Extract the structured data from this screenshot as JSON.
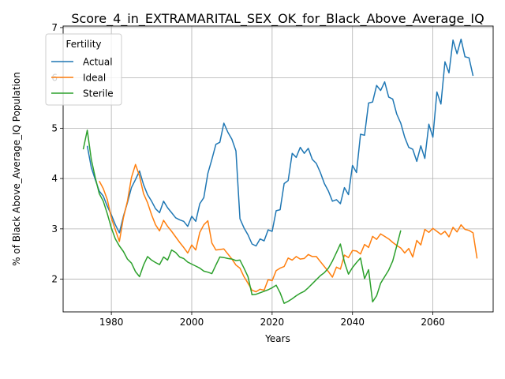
{
  "chart_data": {
    "type": "line",
    "title": "Score_4_in_EXTRAMARITAL_SEX_OK_for_Black_Above_Average_IQ",
    "xlabel": "Years",
    "ylabel": "% of Black Above_Average_IQ Population",
    "xlim": [
      1968,
      2075
    ],
    "ylim": [
      1.35,
      7.03
    ],
    "xticks": [
      1980,
      2000,
      2020,
      2040,
      2060
    ],
    "yticks": [
      2,
      3,
      4,
      5,
      6,
      7
    ],
    "grid": true,
    "legend": {
      "title": "Fertility",
      "placement": "top-left"
    },
    "series": [
      {
        "name": "Actual",
        "color": "#1f77b4",
        "points": [
          [
            1974,
            4.65
          ],
          [
            1975,
            4.22
          ],
          [
            1976,
            3.98
          ],
          [
            1977,
            3.75
          ],
          [
            1978,
            3.65
          ],
          [
            1979,
            3.45
          ],
          [
            1980,
            3.28
          ],
          [
            1981,
            3.08
          ],
          [
            1982,
            2.92
          ],
          [
            1983,
            3.25
          ],
          [
            1984,
            3.52
          ],
          [
            1985,
            3.82
          ],
          [
            1986,
            3.98
          ],
          [
            1987,
            4.15
          ],
          [
            1988,
            3.88
          ],
          [
            1989,
            3.68
          ],
          [
            1990,
            3.55
          ],
          [
            1991,
            3.4
          ],
          [
            1992,
            3.32
          ],
          [
            1993,
            3.55
          ],
          [
            1994,
            3.42
          ],
          [
            1995,
            3.32
          ],
          [
            1996,
            3.22
          ],
          [
            1997,
            3.18
          ],
          [
            1998,
            3.15
          ],
          [
            1999,
            3.05
          ],
          [
            2000,
            3.25
          ],
          [
            2001,
            3.15
          ],
          [
            2002,
            3.5
          ],
          [
            2003,
            3.62
          ],
          [
            2004,
            4.1
          ],
          [
            2005,
            4.38
          ],
          [
            2006,
            4.68
          ],
          [
            2007,
            4.72
          ],
          [
            2008,
            5.1
          ],
          [
            2009,
            4.92
          ],
          [
            2010,
            4.78
          ],
          [
            2011,
            4.55
          ],
          [
            2012,
            3.2
          ],
          [
            2013,
            3.02
          ],
          [
            2014,
            2.88
          ],
          [
            2015,
            2.7
          ],
          [
            2016,
            2.66
          ],
          [
            2017,
            2.8
          ],
          [
            2018,
            2.76
          ],
          [
            2019,
            2.98
          ],
          [
            2020,
            2.95
          ],
          [
            2021,
            3.36
          ],
          [
            2022,
            3.38
          ],
          [
            2023,
            3.9
          ],
          [
            2024,
            3.96
          ],
          [
            2025,
            4.5
          ],
          [
            2026,
            4.42
          ],
          [
            2027,
            4.62
          ],
          [
            2028,
            4.5
          ],
          [
            2029,
            4.6
          ],
          [
            2030,
            4.38
          ],
          [
            2031,
            4.3
          ],
          [
            2032,
            4.12
          ],
          [
            2033,
            3.9
          ],
          [
            2034,
            3.75
          ],
          [
            2035,
            3.55
          ],
          [
            2036,
            3.58
          ],
          [
            2037,
            3.5
          ],
          [
            2038,
            3.82
          ],
          [
            2039,
            3.68
          ],
          [
            2040,
            4.26
          ],
          [
            2041,
            4.12
          ],
          [
            2042,
            4.88
          ],
          [
            2043,
            4.86
          ],
          [
            2044,
            5.5
          ],
          [
            2045,
            5.52
          ],
          [
            2046,
            5.85
          ],
          [
            2047,
            5.75
          ],
          [
            2048,
            5.92
          ],
          [
            2049,
            5.62
          ],
          [
            2050,
            5.58
          ],
          [
            2051,
            5.28
          ],
          [
            2052,
            5.1
          ],
          [
            2053,
            4.82
          ],
          [
            2054,
            4.62
          ],
          [
            2055,
            4.58
          ],
          [
            2056,
            4.34
          ],
          [
            2057,
            4.65
          ],
          [
            2058,
            4.4
          ],
          [
            2059,
            5.08
          ],
          [
            2060,
            4.82
          ],
          [
            2061,
            5.72
          ],
          [
            2062,
            5.48
          ],
          [
            2063,
            6.32
          ],
          [
            2064,
            6.1
          ],
          [
            2065,
            6.75
          ],
          [
            2066,
            6.48
          ],
          [
            2067,
            6.77
          ],
          [
            2068,
            6.42
          ],
          [
            2069,
            6.4
          ],
          [
            2070,
            6.04
          ]
        ]
      },
      {
        "name": "Ideal",
        "color": "#ff7f0e",
        "points": [
          [
            1977,
            3.95
          ],
          [
            1978,
            3.8
          ],
          [
            1979,
            3.58
          ],
          [
            1980,
            3.22
          ],
          [
            1981,
            2.98
          ],
          [
            1982,
            2.75
          ],
          [
            1983,
            3.22
          ],
          [
            1984,
            3.55
          ],
          [
            1985,
            4.02
          ],
          [
            1986,
            4.28
          ],
          [
            1987,
            4.05
          ],
          [
            1988,
            3.7
          ],
          [
            1989,
            3.52
          ],
          [
            1990,
            3.28
          ],
          [
            1991,
            3.08
          ],
          [
            1992,
            2.96
          ],
          [
            1993,
            3.17
          ],
          [
            1994,
            3.05
          ],
          [
            1995,
            2.95
          ],
          [
            1996,
            2.84
          ],
          [
            1997,
            2.73
          ],
          [
            1998,
            2.63
          ],
          [
            1999,
            2.52
          ],
          [
            2000,
            2.68
          ],
          [
            2001,
            2.58
          ],
          [
            2002,
            2.93
          ],
          [
            2003,
            3.08
          ],
          [
            2004,
            3.16
          ],
          [
            2005,
            2.72
          ],
          [
            2006,
            2.58
          ],
          [
            2007,
            2.59
          ],
          [
            2008,
            2.6
          ],
          [
            2009,
            2.5
          ],
          [
            2010,
            2.4
          ],
          [
            2011,
            2.28
          ],
          [
            2012,
            2.22
          ],
          [
            2013,
            2.05
          ],
          [
            2014,
            1.92
          ],
          [
            2015,
            1.78
          ],
          [
            2016,
            1.75
          ],
          [
            2017,
            1.8
          ],
          [
            2018,
            1.78
          ],
          [
            2019,
            1.99
          ],
          [
            2020,
            1.97
          ],
          [
            2021,
            2.17
          ],
          [
            2022,
            2.22
          ],
          [
            2023,
            2.25
          ],
          [
            2024,
            2.42
          ],
          [
            2025,
            2.38
          ],
          [
            2026,
            2.45
          ],
          [
            2027,
            2.4
          ],
          [
            2028,
            2.41
          ],
          [
            2029,
            2.49
          ],
          [
            2030,
            2.45
          ],
          [
            2031,
            2.45
          ],
          [
            2032,
            2.35
          ],
          [
            2033,
            2.25
          ],
          [
            2034,
            2.15
          ],
          [
            2035,
            2.04
          ],
          [
            2036,
            2.24
          ],
          [
            2037,
            2.2
          ],
          [
            2038,
            2.48
          ],
          [
            2039,
            2.43
          ],
          [
            2040,
            2.57
          ],
          [
            2041,
            2.56
          ],
          [
            2042,
            2.5
          ],
          [
            2043,
            2.69
          ],
          [
            2044,
            2.63
          ],
          [
            2045,
            2.85
          ],
          [
            2046,
            2.79
          ],
          [
            2047,
            2.9
          ],
          [
            2048,
            2.85
          ],
          [
            2049,
            2.8
          ],
          [
            2050,
            2.73
          ],
          [
            2051,
            2.67
          ],
          [
            2052,
            2.62
          ],
          [
            2053,
            2.52
          ],
          [
            2054,
            2.61
          ],
          [
            2055,
            2.44
          ],
          [
            2056,
            2.77
          ],
          [
            2057,
            2.68
          ],
          [
            2058,
            2.99
          ],
          [
            2059,
            2.93
          ],
          [
            2060,
            3.01
          ],
          [
            2061,
            2.95
          ],
          [
            2062,
            2.89
          ],
          [
            2063,
            2.95
          ],
          [
            2064,
            2.84
          ],
          [
            2065,
            3.03
          ],
          [
            2066,
            2.94
          ],
          [
            2067,
            3.08
          ],
          [
            2068,
            2.99
          ],
          [
            2069,
            2.97
          ],
          [
            2070,
            2.92
          ],
          [
            2071,
            2.41
          ]
        ]
      },
      {
        "name": "Sterile",
        "color": "#2ca02c",
        "points": [
          [
            1973,
            4.58
          ],
          [
            1974,
            4.96
          ],
          [
            1975,
            4.38
          ],
          [
            1976,
            4.02
          ],
          [
            1977,
            3.7
          ],
          [
            1978,
            3.55
          ],
          [
            1979,
            3.3
          ],
          [
            1980,
            3.02
          ],
          [
            1981,
            2.8
          ],
          [
            1982,
            2.66
          ],
          [
            1983,
            2.55
          ],
          [
            1984,
            2.4
          ],
          [
            1985,
            2.32
          ],
          [
            1986,
            2.15
          ],
          [
            1987,
            2.05
          ],
          [
            1988,
            2.28
          ],
          [
            1989,
            2.45
          ],
          [
            1990,
            2.38
          ],
          [
            1991,
            2.33
          ],
          [
            1992,
            2.29
          ],
          [
            1993,
            2.44
          ],
          [
            1994,
            2.38
          ],
          [
            1995,
            2.58
          ],
          [
            1996,
            2.53
          ],
          [
            1997,
            2.44
          ],
          [
            1998,
            2.41
          ],
          [
            1999,
            2.34
          ],
          [
            2000,
            2.3
          ],
          [
            2001,
            2.26
          ],
          [
            2002,
            2.22
          ],
          [
            2003,
            2.16
          ],
          [
            2004,
            2.14
          ],
          [
            2005,
            2.11
          ],
          [
            2006,
            2.28
          ],
          [
            2007,
            2.44
          ],
          [
            2008,
            2.43
          ],
          [
            2009,
            2.41
          ],
          [
            2010,
            2.4
          ],
          [
            2011,
            2.37
          ],
          [
            2012,
            2.38
          ],
          [
            2013,
            2.22
          ],
          [
            2014,
            2.05
          ],
          [
            2015,
            1.69
          ],
          [
            2016,
            1.7
          ],
          [
            2017,
            1.73
          ],
          [
            2018,
            1.76
          ],
          [
            2019,
            1.79
          ],
          [
            2020,
            1.83
          ],
          [
            2021,
            1.88
          ],
          [
            2022,
            1.73
          ],
          [
            2023,
            1.52
          ],
          [
            2024,
            1.56
          ],
          [
            2025,
            1.61
          ],
          [
            2026,
            1.67
          ],
          [
            2027,
            1.72
          ],
          [
            2028,
            1.76
          ],
          [
            2029,
            1.83
          ],
          [
            2030,
            1.91
          ],
          [
            2031,
            1.99
          ],
          [
            2032,
            2.07
          ],
          [
            2033,
            2.13
          ],
          [
            2034,
            2.22
          ],
          [
            2035,
            2.36
          ],
          [
            2036,
            2.53
          ],
          [
            2037,
            2.7
          ],
          [
            2038,
            2.34
          ],
          [
            2039,
            2.1
          ],
          [
            2040,
            2.23
          ],
          [
            2041,
            2.33
          ],
          [
            2042,
            2.42
          ],
          [
            2043,
            2.01
          ],
          [
            2044,
            2.19
          ],
          [
            2045,
            1.55
          ],
          [
            2046,
            1.67
          ],
          [
            2047,
            1.92
          ],
          [
            2048,
            2.05
          ],
          [
            2049,
            2.18
          ],
          [
            2050,
            2.36
          ],
          [
            2051,
            2.66
          ],
          [
            2052,
            2.97
          ]
        ]
      }
    ]
  }
}
